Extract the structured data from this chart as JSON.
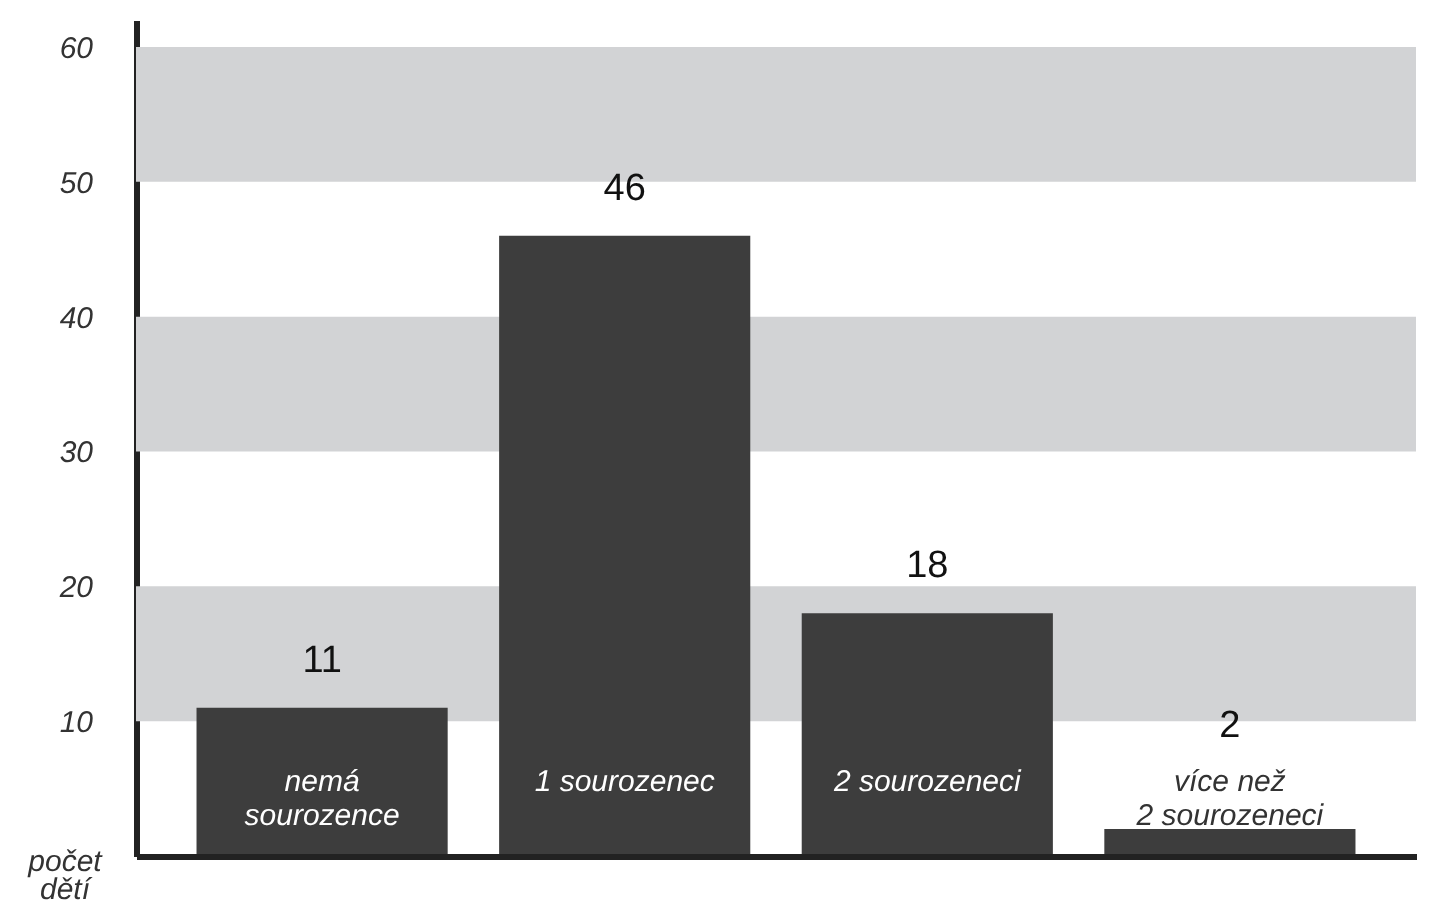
{
  "chart_data": {
    "type": "bar",
    "ylabel": "počet dětí",
    "categories": [
      "nemá\nsourozence",
      "1 sourozenec",
      "2 sourozeneci",
      "více než\n2 sourozeneci"
    ],
    "values": [
      11,
      46,
      18,
      2
    ],
    "color": "#3d3d3d",
    "data_labels": true,
    "ylim": [
      0,
      62
    ],
    "yticks": [
      10,
      20,
      30,
      40,
      50,
      60
    ],
    "grid": false,
    "bands": [
      {
        "axis": "y",
        "from": 10,
        "to": 20,
        "color": "#d2d3d5"
      },
      {
        "axis": "y",
        "from": 30,
        "to": 40,
        "color": "#d2d3d5"
      },
      {
        "axis": "y",
        "from": 50,
        "to": 60,
        "color": "#d2d3d5"
      }
    ]
  }
}
